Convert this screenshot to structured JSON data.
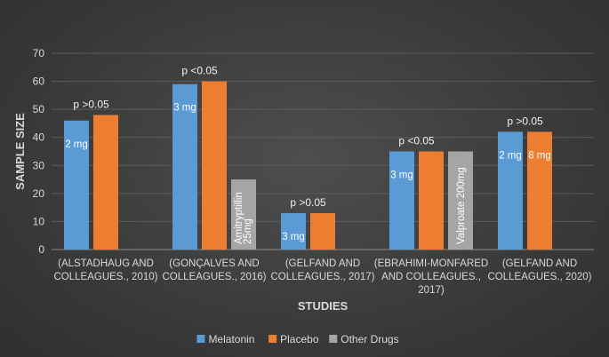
{
  "chart_data": {
    "type": "bar",
    "title": "",
    "xlabel": "STUDIES",
    "ylabel": "SAMPLE SIZE",
    "ylim": [
      0,
      70
    ],
    "yticks": [
      0,
      10,
      20,
      30,
      40,
      50,
      60,
      70
    ],
    "grid": true,
    "legend_position": "bottom",
    "categories": [
      [
        "(ALSTADHAUG AND",
        "COLLEAGUES., 2010)"
      ],
      [
        "(GONÇALVES AND",
        "COLLEAGUES., 2016)"
      ],
      [
        "(GELFAND AND",
        "COLLEAGUES., 2017)"
      ],
      [
        "(EBRAHIMI-MONFARED",
        "AND COLLEAGUES.,",
        "2017)"
      ],
      [
        "(GELFAND AND",
        "COLLEAGUES., 2020)"
      ]
    ],
    "series": [
      {
        "name": "Melatonin",
        "color": "#5b9bd5",
        "values": [
          46,
          59,
          13,
          35,
          42
        ]
      },
      {
        "name": "Placebo",
        "color": "#ed7d31",
        "values": [
          48,
          60,
          13,
          35,
          42
        ]
      },
      {
        "name": "Other Drugs",
        "color": "#a5a5a5",
        "values": [
          null,
          25,
          null,
          35,
          null
        ]
      }
    ],
    "annotations": [
      "p >0.05",
      "p <0.05",
      "p >0.05",
      "p <0.05",
      "p >0.05"
    ],
    "bar_labels": [
      {
        "category": 0,
        "series": 0,
        "text": "2 mg",
        "vertical": false
      },
      {
        "category": 1,
        "series": 0,
        "text": "3 mg",
        "vertical": false
      },
      {
        "category": 1,
        "series": 2,
        "text": "Amitryptillin 25mg",
        "vertical": true,
        "lines": [
          "Amitryptillin",
          "25mg"
        ]
      },
      {
        "category": 2,
        "series": 0,
        "text": "3 mg",
        "vertical": false
      },
      {
        "category": 3,
        "series": 0,
        "text": "3 mg",
        "vertical": false
      },
      {
        "category": 3,
        "series": 2,
        "text": "Valproate 200mg",
        "vertical": true,
        "lines": [
          "Valproate 200mg"
        ]
      },
      {
        "category": 4,
        "series": 0,
        "text": "2 mg",
        "vertical": false
      },
      {
        "category": 4,
        "series": 1,
        "text": "8 mg",
        "vertical": false
      }
    ]
  }
}
